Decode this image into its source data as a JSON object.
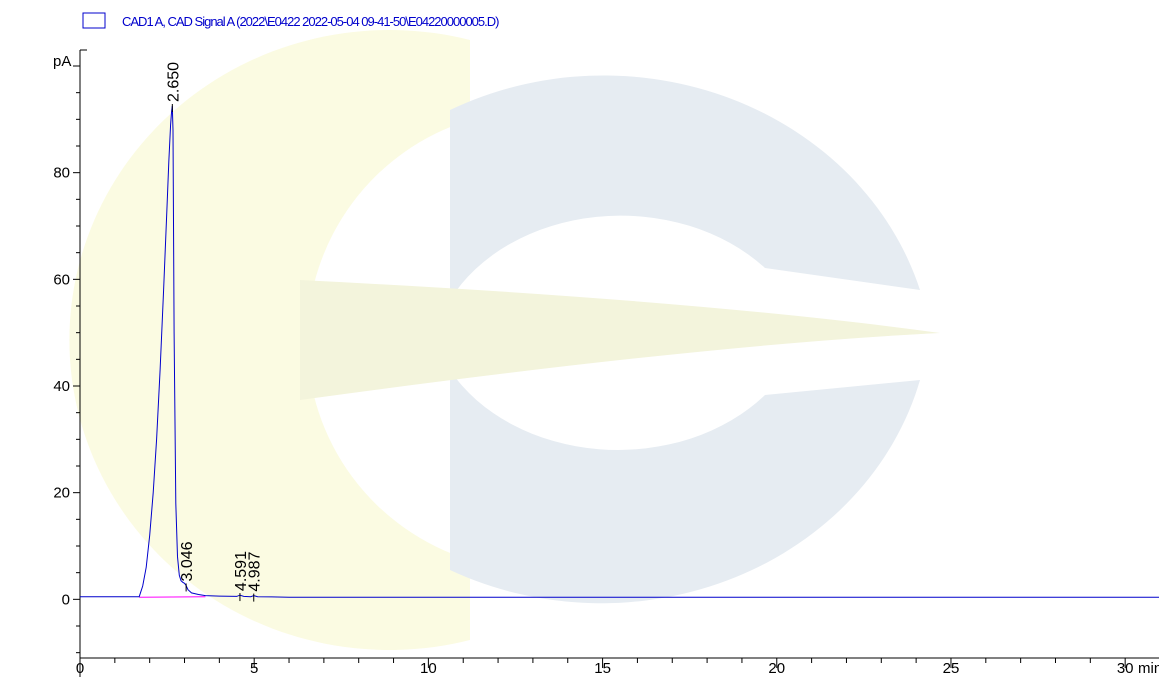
{
  "chart_data": {
    "type": "line",
    "legend": {
      "label": "CAD1 A, CAD Signal A (2022\\E0422 2022-05-04 09-41-50\\E04220000005.D)",
      "placement": "top-left"
    },
    "y_unit": "pA",
    "x_unit": "min",
    "xlim": [
      0,
      31
    ],
    "ylim": [
      -11,
      103
    ],
    "x_major_ticks": [
      0,
      5,
      10,
      15,
      20,
      25,
      30
    ],
    "x_tick_labels": [
      "0",
      "5",
      "10",
      "15",
      "20",
      "25",
      "30"
    ],
    "y_major_ticks": [
      0,
      20,
      40,
      60,
      80
    ],
    "y_tick_labels": [
      "0",
      "20",
      "40",
      "60",
      "80"
    ],
    "grid": false,
    "series": [
      {
        "color": "#0000cc",
        "x": [
          0,
          1.7,
          1.8,
          1.9,
          2.0,
          2.1,
          2.2,
          2.3,
          2.4,
          2.5,
          2.55,
          2.6,
          2.63,
          2.65,
          2.67,
          2.7,
          2.75,
          2.8,
          2.85,
          2.9,
          2.95,
          3.0,
          3.046,
          3.1,
          3.2,
          3.4,
          3.6,
          4.0,
          4.5,
          4.591,
          4.7,
          4.9,
          4.987,
          5.1,
          5.5,
          6,
          10,
          15,
          20,
          25,
          31
        ],
        "y": [
          0.5,
          0.5,
          2.5,
          6,
          12,
          20,
          30,
          43,
          58,
          74,
          82,
          89,
          91.5,
          92.5,
          88,
          50,
          18,
          8,
          4.5,
          3.5,
          3.2,
          3.0,
          2.6,
          1.8,
          1.2,
          0.9,
          0.7,
          0.6,
          0.55,
          0.8,
          0.55,
          0.5,
          0.7,
          0.5,
          0.45,
          0.4,
          0.4,
          0.4,
          0.4,
          0.4,
          0.4
        ]
      }
    ],
    "baseline": {
      "color": "#ff00ff",
      "x": [
        1.7,
        3.6
      ],
      "y": [
        0.4,
        0.5
      ]
    },
    "peaks": [
      {
        "rt": 2.65,
        "label": "2.650",
        "y": 92.5
      },
      {
        "rt": 3.046,
        "label": "3.046",
        "y": 2.6
      },
      {
        "rt": 4.591,
        "label": "4.591",
        "y": 0.8
      },
      {
        "rt": 4.987,
        "label": "4.987",
        "y": 0.7
      }
    ],
    "watermark_colors": [
      "#e6ecf2",
      "#fbfbe2"
    ]
  }
}
